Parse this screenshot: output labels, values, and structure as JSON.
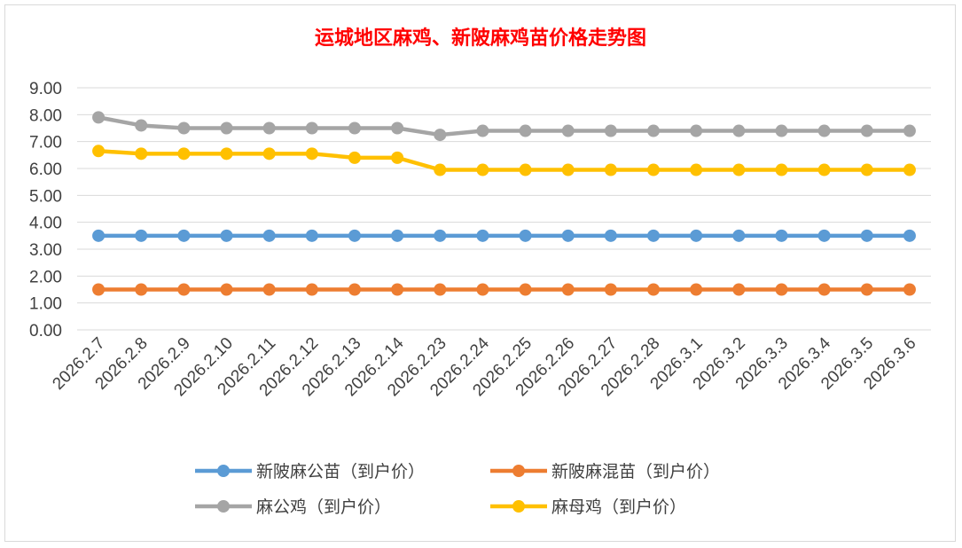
{
  "chart_data": {
    "type": "line",
    "title": "运城地区麻鸡、新陂麻鸡苗价格走势图",
    "categories": [
      "2026.2.7",
      "2026.2.8",
      "2026.2.9",
      "2026.2.10",
      "2026.2.11",
      "2026.2.12",
      "2026.2.13",
      "2026.2.14",
      "2026.2.23",
      "2026.2.24",
      "2026.2.25",
      "2026.2.26",
      "2026.2.27",
      "2026.2.28",
      "2026.3.1",
      "2026.3.2",
      "2026.3.3",
      "2026.3.4",
      "2026.3.5",
      "2026.3.6"
    ],
    "yticks": [
      "0.00",
      "1.00",
      "2.00",
      "3.00",
      "4.00",
      "5.00",
      "6.00",
      "7.00",
      "8.00",
      "9.00"
    ],
    "ylim": [
      0,
      9
    ],
    "grid": true,
    "legend_position": "bottom",
    "series": [
      {
        "name": "新陂麻公苗（到户价）",
        "color": "#5b9bd5",
        "values": [
          3.5,
          3.5,
          3.5,
          3.5,
          3.5,
          3.5,
          3.5,
          3.5,
          3.5,
          3.5,
          3.5,
          3.5,
          3.5,
          3.5,
          3.5,
          3.5,
          3.5,
          3.5,
          3.5,
          3.5
        ]
      },
      {
        "name": "新陂麻混苗（到户价）",
        "color": "#ed7d31",
        "values": [
          1.5,
          1.5,
          1.5,
          1.5,
          1.5,
          1.5,
          1.5,
          1.5,
          1.5,
          1.5,
          1.5,
          1.5,
          1.5,
          1.5,
          1.5,
          1.5,
          1.5,
          1.5,
          1.5,
          1.5
        ]
      },
      {
        "name": "麻公鸡（到户价）",
        "color": "#a5a5a5",
        "values": [
          7.9,
          7.6,
          7.5,
          7.5,
          7.5,
          7.5,
          7.5,
          7.5,
          7.25,
          7.4,
          7.4,
          7.4,
          7.4,
          7.4,
          7.4,
          7.4,
          7.4,
          7.4,
          7.4,
          7.4
        ]
      },
      {
        "name": "麻母鸡（到户价）",
        "color": "#ffc000",
        "values": [
          6.65,
          6.55,
          6.55,
          6.55,
          6.55,
          6.55,
          6.4,
          6.4,
          5.95,
          5.95,
          5.95,
          5.95,
          5.95,
          5.95,
          5.95,
          5.95,
          5.95,
          5.95,
          5.95,
          5.95
        ]
      }
    ]
  }
}
